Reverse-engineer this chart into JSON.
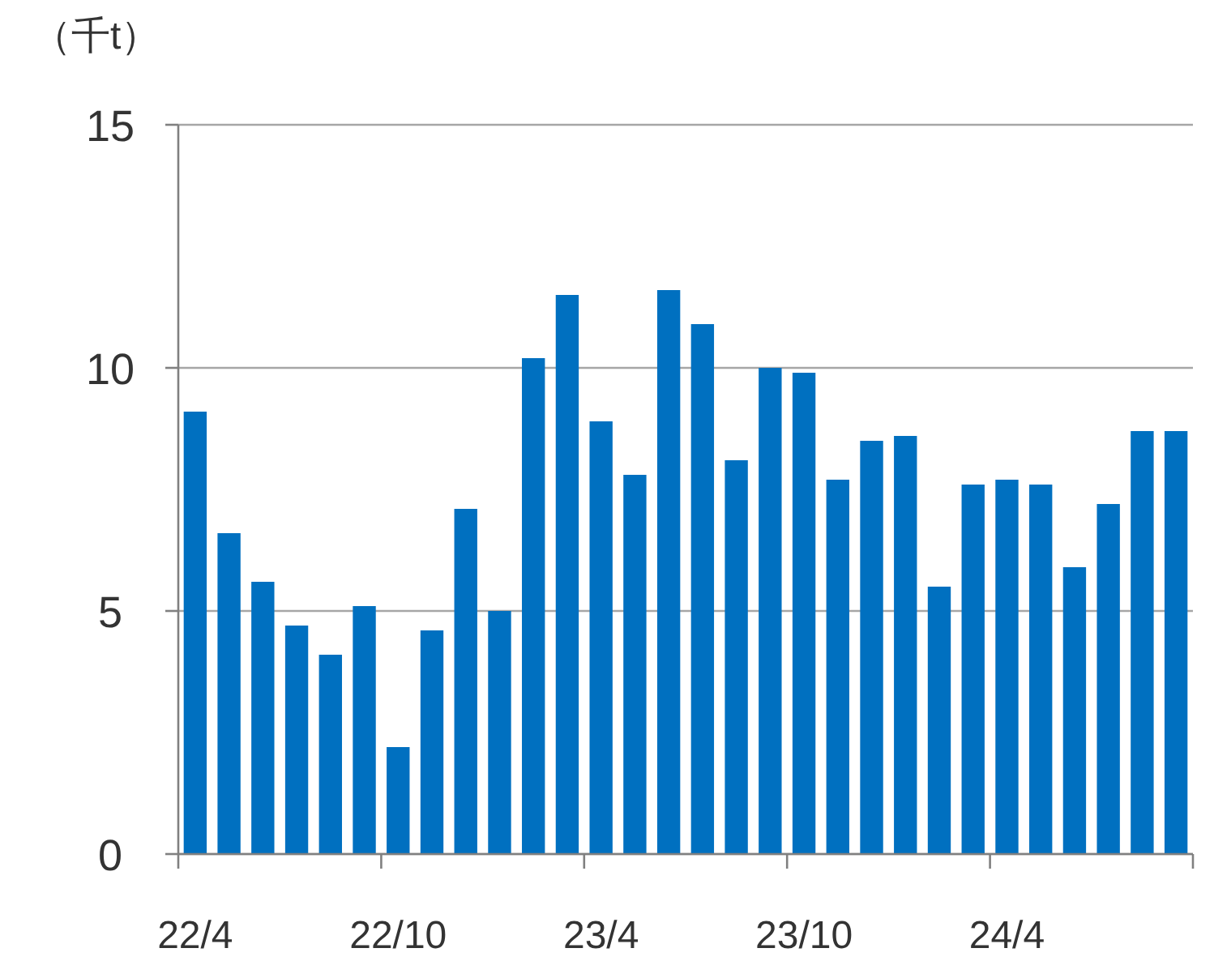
{
  "chart_data": {
    "type": "bar",
    "ylabel": "（千t）",
    "categories": [
      "22/4",
      null,
      null,
      null,
      null,
      null,
      "22/10",
      null,
      null,
      null,
      null,
      null,
      "23/4",
      null,
      null,
      null,
      null,
      null,
      "23/10",
      null,
      null,
      null,
      null,
      null,
      "24/4",
      null,
      null,
      null,
      null,
      null
    ],
    "values": [
      9.1,
      6.6,
      5.6,
      4.7,
      4.1,
      5.1,
      2.2,
      4.6,
      7.1,
      5.0,
      10.2,
      11.5,
      8.9,
      7.8,
      11.6,
      10.9,
      8.1,
      10.0,
      9.9,
      7.7,
      8.5,
      8.6,
      5.5,
      7.6,
      7.7,
      7.6,
      5.9,
      7.2,
      8.7,
      8.7
    ],
    "color": "#0070c0",
    "ylim": [
      0,
      15
    ],
    "yticks": [
      0,
      5,
      10,
      15
    ],
    "grid": "y"
  }
}
